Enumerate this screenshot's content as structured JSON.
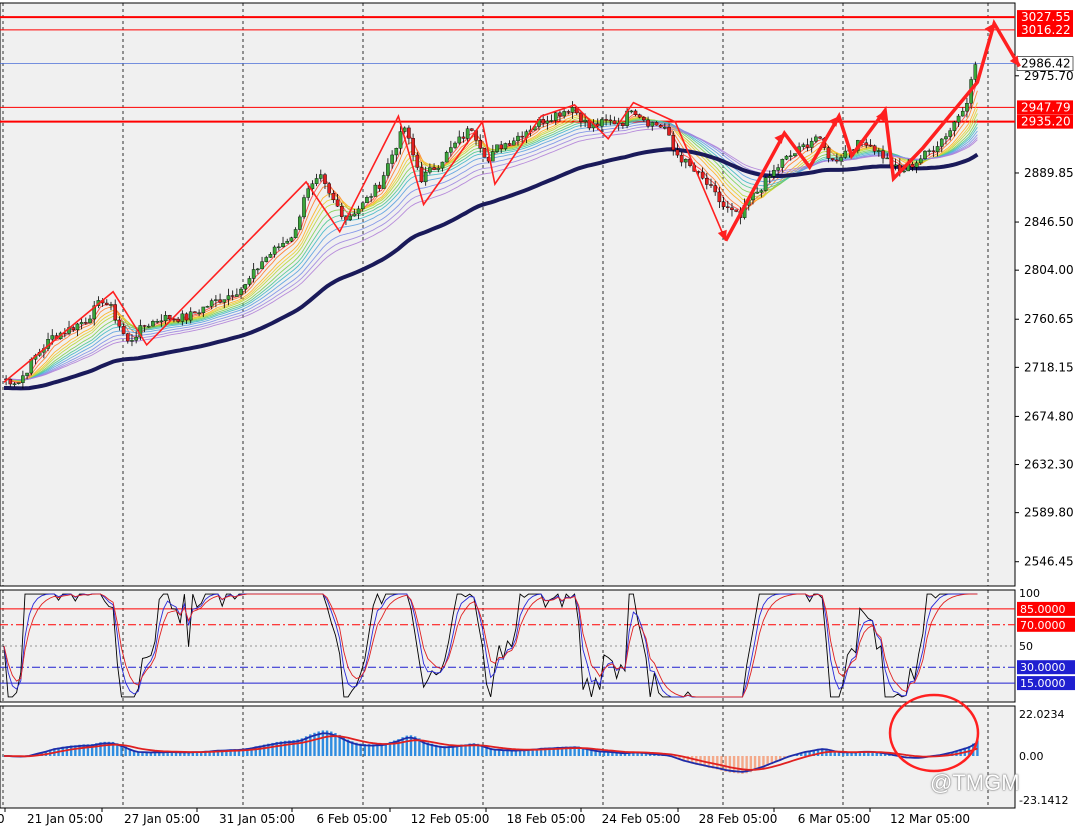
{
  "colors": {
    "background": "#f0f0f0",
    "frame": "#000000",
    "candle_up": "#3aa53a",
    "candle_down": "#e02020",
    "support_resistance": "#ff0000",
    "current_price_line": "#4a6fd8",
    "guppy_thick": "#1a1a5a",
    "annotation_arrow": "#ff2020",
    "stoch_main": "#000000",
    "stoch_signal": "#2a2ad8",
    "stoch_slow": "#e02020",
    "macd_pos_hist": "#2e8ce0",
    "macd_neg_hist": "#f4a98a",
    "macd_line": "#1f2ca8",
    "macd_signal": "#e02020",
    "level_box_red": "#ff0000",
    "level_box_blue": "#1f1fd0"
  },
  "watermark": "@TMGM",
  "chart_data": [
    {
      "type": "candlestick",
      "panel": "price",
      "ylim": [
        2525,
        3040
      ],
      "y_ticks": [
        "2975.70",
        "2889.85",
        "2846.50",
        "2804.00",
        "2760.65",
        "2718.15",
        "2674.80",
        "2632.30",
        "2589.80",
        "2546.45"
      ],
      "x_ticks": [
        "21 Jan 05:00",
        "27 Jan 05:00",
        "31 Jan 05:00",
        "6 Feb 05:00",
        "12 Feb 05:00",
        "18 Feb 05:00",
        "24 Feb 05:00",
        "28 Feb 05:00",
        "6 Mar 05:00",
        "12 Mar 05:00"
      ],
      "price_levels": [
        {
          "value": 3027.55,
          "label": "3027.55",
          "style": "box-red"
        },
        {
          "value": 3016.22,
          "label": "3016.22",
          "style": "box-red"
        },
        {
          "value": 2986.42,
          "label": "2986.42",
          "style": "current"
        },
        {
          "value": 2947.79,
          "label": "2947.79",
          "style": "box-red"
        },
        {
          "value": 2935.2,
          "label": "2935.20",
          "style": "box-red"
        }
      ],
      "approx_close_path": [
        {
          "t": 0,
          "v": 2708
        },
        {
          "t": 4,
          "v": 2705
        },
        {
          "t": 8,
          "v": 2728
        },
        {
          "t": 12,
          "v": 2745
        },
        {
          "t": 16,
          "v": 2752
        },
        {
          "t": 20,
          "v": 2760
        },
        {
          "t": 24,
          "v": 2778
        },
        {
          "t": 26,
          "v": 2770
        },
        {
          "t": 30,
          "v": 2740
        },
        {
          "t": 34,
          "v": 2755
        },
        {
          "t": 38,
          "v": 2762
        },
        {
          "t": 44,
          "v": 2762
        },
        {
          "t": 50,
          "v": 2775
        },
        {
          "t": 54,
          "v": 2782
        },
        {
          "t": 58,
          "v": 2790
        },
        {
          "t": 62,
          "v": 2812
        },
        {
          "t": 66,
          "v": 2825
        },
        {
          "t": 70,
          "v": 2838
        },
        {
          "t": 72,
          "v": 2870
        },
        {
          "t": 76,
          "v": 2885
        },
        {
          "t": 78,
          "v": 2870
        },
        {
          "t": 82,
          "v": 2850
        },
        {
          "t": 86,
          "v": 2862
        },
        {
          "t": 90,
          "v": 2880
        },
        {
          "t": 94,
          "v": 2915
        },
        {
          "t": 96,
          "v": 2930
        },
        {
          "t": 98,
          "v": 2905
        },
        {
          "t": 100,
          "v": 2885
        },
        {
          "t": 104,
          "v": 2898
        },
        {
          "t": 108,
          "v": 2915
        },
        {
          "t": 112,
          "v": 2930
        },
        {
          "t": 116,
          "v": 2900
        },
        {
          "t": 118,
          "v": 2912
        },
        {
          "t": 122,
          "v": 2920
        },
        {
          "t": 128,
          "v": 2935
        },
        {
          "t": 132,
          "v": 2942
        },
        {
          "t": 136,
          "v": 2948
        },
        {
          "t": 140,
          "v": 2930
        },
        {
          "t": 144,
          "v": 2935
        },
        {
          "t": 148,
          "v": 2935
        },
        {
          "t": 150,
          "v": 2948
        },
        {
          "t": 154,
          "v": 2935
        },
        {
          "t": 158,
          "v": 2930
        },
        {
          "t": 160,
          "v": 2910
        },
        {
          "t": 164,
          "v": 2895
        },
        {
          "t": 168,
          "v": 2880
        },
        {
          "t": 172,
          "v": 2860
        },
        {
          "t": 176,
          "v": 2850
        },
        {
          "t": 178,
          "v": 2865
        },
        {
          "t": 182,
          "v": 2882
        },
        {
          "t": 186,
          "v": 2900
        },
        {
          "t": 190,
          "v": 2910
        },
        {
          "t": 194,
          "v": 2922
        },
        {
          "t": 198,
          "v": 2900
        },
        {
          "t": 202,
          "v": 2912
        },
        {
          "t": 206,
          "v": 2918
        },
        {
          "t": 210,
          "v": 2905
        },
        {
          "t": 214,
          "v": 2890
        },
        {
          "t": 218,
          "v": 2900
        },
        {
          "t": 222,
          "v": 2912
        },
        {
          "t": 226,
          "v": 2928
        },
        {
          "t": 230,
          "v": 2955
        },
        {
          "t": 232,
          "v": 2986
        }
      ]
    },
    {
      "type": "line",
      "panel": "stochastic",
      "ylim": [
        0,
        100
      ],
      "y_ticks": [
        "100",
        "50",
        "0"
      ],
      "levels": [
        {
          "value": 85,
          "label": "85.0000",
          "style": "box-red"
        },
        {
          "value": 70,
          "label": "70.0000",
          "style": "box-red"
        },
        {
          "value": 30,
          "label": "30.0000",
          "style": "box-blue"
        },
        {
          "value": 15,
          "label": "15.0000",
          "style": "box-blue"
        }
      ]
    },
    {
      "type": "bar",
      "panel": "macd",
      "y_ticks": [
        "22.0234",
        "0.00",
        "-23.1412"
      ],
      "ylim": [
        -23.1412,
        22.0234
      ]
    }
  ]
}
